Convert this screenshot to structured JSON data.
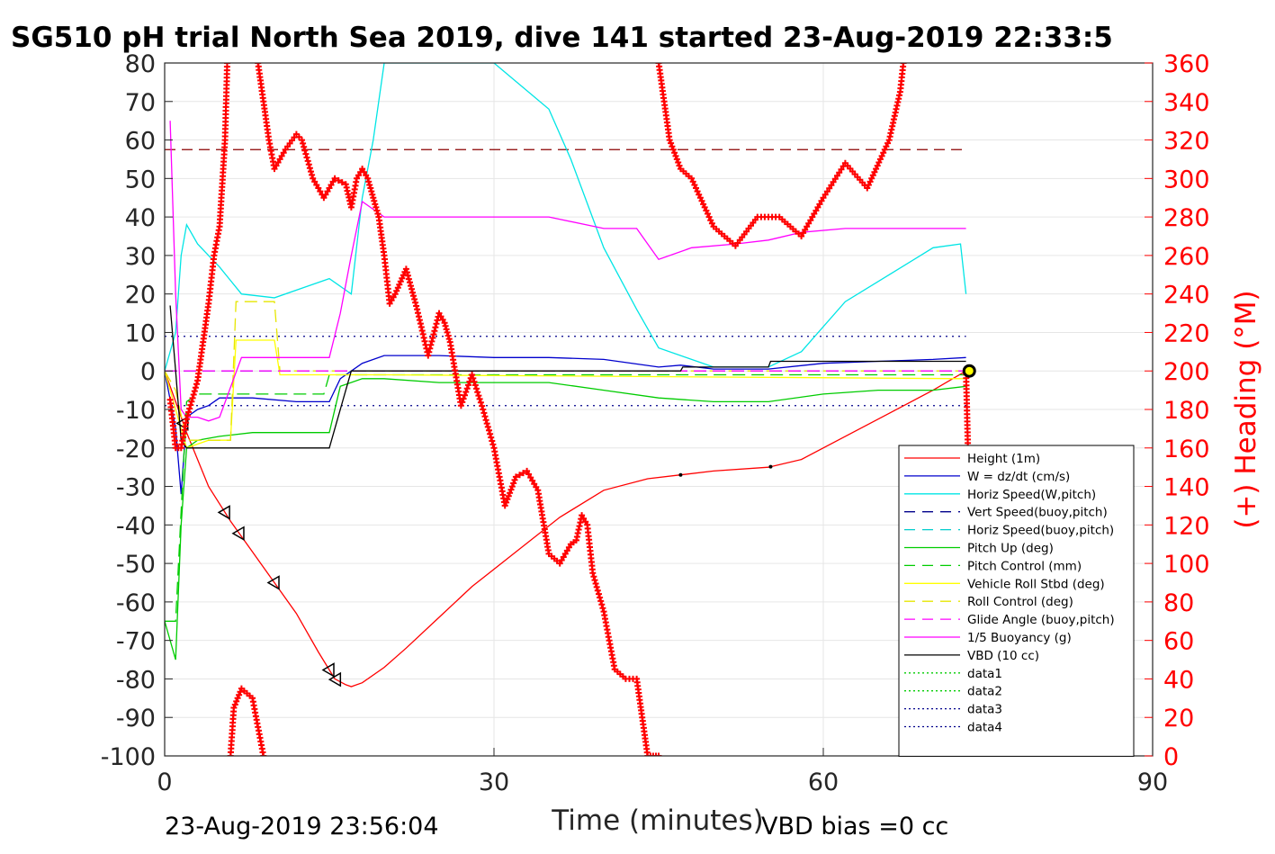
{
  "title": "SG510 pH trial North Sea 2019, dive 141 started 23-Aug-2019 22:33:5",
  "footer": {
    "timestamp": "23-Aug-2019 23:56:04",
    "vbd_bias": "VBD bias =0 cc"
  },
  "chart_data": {
    "type": "line",
    "title": "SG510 pH trial North Sea 2019, dive 141 started 23-Aug-2019 22:33:5",
    "xlabel": "Time (minutes)",
    "ylabel": "",
    "ylabel_right": "(+) Heading (°M)",
    "xlim": [
      0,
      90
    ],
    "ylim": [
      -100,
      80
    ],
    "ylim_right": [
      0,
      360
    ],
    "x_ticks": [
      "0",
      "30",
      "60",
      "90"
    ],
    "y_ticks": [
      "80",
      "70",
      "60",
      "50",
      "40",
      "30",
      "20",
      "10",
      "0",
      "-10",
      "-20",
      "-30",
      "-40",
      "-50",
      "-60",
      "-70",
      "-80",
      "-90",
      "-100"
    ],
    "y_ticks_right": [
      "360",
      "340",
      "320",
      "300",
      "280",
      "260",
      "240",
      "220",
      "200",
      "180",
      "160",
      "140",
      "120",
      "100",
      "80",
      "60",
      "40",
      "20",
      "0"
    ],
    "grid": true,
    "legend_position": "bottom-right",
    "reference_lines": [
      {
        "y_right": 315,
        "color": "#8b0000",
        "style": "dashed"
      },
      {
        "y": 9,
        "color": "#00008b",
        "style": "dotted"
      },
      {
        "y": -9,
        "color": "#00008b",
        "style": "dotted"
      }
    ],
    "series": [
      {
        "name": "Height (1m)",
        "color": "#ff0000",
        "style": "solid",
        "x": [
          0,
          1,
          2,
          4,
          6,
          8,
          10,
          12,
          14,
          15.5,
          16.5,
          17,
          18,
          20,
          22,
          25,
          28,
          32,
          36,
          40,
          44,
          47,
          50,
          55,
          58,
          62,
          66,
          70,
          73
        ],
        "y": [
          0,
          -8,
          -16,
          -30,
          -39,
          -47,
          -55,
          -63,
          -73,
          -80,
          -81.5,
          -82,
          -81,
          -77,
          -72,
          -64,
          -56,
          -47,
          -38,
          -31,
          -28,
          -27,
          -26,
          -25,
          -23,
          -17,
          -11,
          -5,
          0
        ]
      },
      {
        "name": "W = dz/dt (cm/s)",
        "color": "#0000cd",
        "style": "solid",
        "x": [
          0,
          1,
          1.5,
          2,
          3,
          4,
          5,
          8,
          12,
          15,
          16,
          18,
          20,
          25,
          30,
          35,
          40,
          45,
          47,
          50,
          55,
          60,
          65,
          70,
          73
        ],
        "y": [
          0,
          -15,
          -32,
          -12,
          -10,
          -9,
          -7,
          -7,
          -8,
          -8,
          -2,
          2,
          4,
          4,
          3.5,
          3.5,
          3,
          1,
          1.5,
          0.5,
          0.5,
          2,
          2.5,
          3,
          3.5
        ]
      },
      {
        "name": "Horiz Speed(W,pitch)",
        "color": "#00e5e5",
        "style": "solid",
        "x": [
          0,
          1,
          1.5,
          2,
          3,
          4,
          5,
          7,
          10,
          13,
          15,
          17,
          18,
          19,
          20,
          25,
          30,
          35,
          37,
          40,
          43,
          45,
          48,
          50,
          55,
          58,
          62,
          66,
          70,
          72.5,
          73
        ],
        "y": [
          0,
          10,
          30,
          38,
          33,
          30,
          27,
          20,
          19,
          22,
          24,
          20,
          45,
          60,
          80,
          80,
          80,
          68,
          55,
          32,
          16,
          6,
          3,
          1,
          1,
          5,
          18,
          25,
          32,
          33,
          20
        ]
      },
      {
        "name": "Vert Speed(buoy,pitch)",
        "color": "#00008b",
        "style": "dashed",
        "x": [
          0,
          73
        ],
        "y": [
          0,
          0
        ]
      },
      {
        "name": "Horiz Speed(buoy,pitch)",
        "color": "#00cccc",
        "style": "dashed",
        "x": [
          0,
          73
        ],
        "y": [
          0,
          0
        ]
      },
      {
        "name": "Pitch Up (deg)",
        "color": "#00cc00",
        "style": "solid",
        "x": [
          0,
          1,
          1.5,
          2,
          3,
          5,
          8,
          12,
          15,
          16,
          18,
          20,
          25,
          30,
          35,
          40,
          45,
          50,
          55,
          60,
          65,
          70,
          73
        ],
        "y": [
          -65,
          -75,
          -40,
          -20,
          -18,
          -17,
          -16,
          -16,
          -16,
          -4,
          -2,
          -2,
          -3,
          -3,
          -3,
          -5,
          -7,
          -8,
          -8,
          -6,
          -5,
          -5,
          -4
        ]
      },
      {
        "name": "Pitch Control (mm)",
        "color": "#00cc00",
        "style": "dashed",
        "x": [
          0,
          1,
          2,
          3,
          14.5,
          15,
          73
        ],
        "y": [
          -65,
          -65,
          -8,
          -6,
          -6,
          -1,
          -1
        ]
      },
      {
        "name": "Vehicle Roll Stbd (deg)",
        "color": "#ffff00",
        "style": "solid",
        "x": [
          0,
          1,
          2,
          4,
          6,
          6.5,
          10,
          10.5,
          15,
          16,
          20,
          73
        ],
        "y": [
          0,
          -10,
          -20,
          -18,
          -18,
          8,
          8,
          -1,
          -1,
          -1,
          -1,
          -2
        ]
      },
      {
        "name": "Roll Control (deg)",
        "color": "#e6e600",
        "style": "dashed",
        "x": [
          0,
          1,
          2,
          6,
          6.5,
          10,
          10.5,
          73
        ],
        "y": [
          0,
          -5,
          -18,
          -18,
          18,
          18,
          0,
          0
        ]
      },
      {
        "name": "Glide Angle (buoy,pitch)",
        "color": "#ff00ff",
        "style": "dashed",
        "x": [
          0,
          73
        ],
        "y": [
          0,
          0
        ]
      },
      {
        "name": "1/5 Buoyancy (g)",
        "color": "#ff00ff",
        "style": "solid",
        "x": [
          0.5,
          1,
          1.5,
          2,
          3,
          4,
          5,
          7,
          10,
          13,
          15,
          16,
          17,
          18,
          20,
          25,
          30,
          35,
          40,
          43,
          45,
          48,
          52,
          55,
          58,
          62,
          66,
          70,
          73
        ],
        "y": [
          65,
          20,
          -10,
          -12,
          -12,
          -13,
          -12,
          3.5,
          3.5,
          3.5,
          3.5,
          15,
          30,
          44,
          40,
          40,
          40,
          40,
          37,
          37,
          29,
          32,
          33,
          34,
          36,
          37,
          37,
          37,
          37
        ]
      },
      {
        "name": "VBD (10 cc)",
        "color": "#000000",
        "style": "solid",
        "x": [
          0.5,
          1,
          1.5,
          2,
          15,
          17,
          18,
          47,
          47.2,
          55,
          55.2,
          73
        ],
        "y": [
          17,
          0,
          -18,
          -20,
          -20,
          0,
          0,
          0,
          1,
          1,
          2.5,
          2.5
        ]
      },
      {
        "name": "data1",
        "color": "#00cc00",
        "style": "dotted",
        "x": [],
        "y": []
      },
      {
        "name": "data2",
        "color": "#00cc00",
        "style": "dotted",
        "x": [],
        "y": []
      },
      {
        "name": "data3",
        "color": "#00008b",
        "style": "dotted",
        "x": [],
        "y": []
      },
      {
        "name": "data4",
        "color": "#00008b",
        "style": "dotted",
        "x": [],
        "y": []
      }
    ],
    "heading": {
      "name": "(+) Heading (°M)",
      "color": "#ff0000",
      "marker": "+",
      "axis": "right",
      "segments": [
        {
          "x": [
            0.5,
            1,
            1.5,
            2,
            3,
            4,
            4.5,
            5,
            5.5,
            5.7
          ],
          "y": [
            185,
            160,
            160,
            175,
            195,
            235,
            260,
            275,
            320,
            360
          ]
        },
        {
          "x": [
            8.5,
            9.5,
            10,
            11,
            12,
            12.5,
            13.5,
            14.5,
            15.5,
            16.5,
            17,
            17.5,
            18,
            18.5,
            19,
            19.5,
            20,
            20.5,
            21,
            22,
            23,
            24,
            25,
            25.5,
            26,
            27,
            28,
            29,
            30,
            31,
            32,
            33,
            34,
            35,
            36,
            37,
            37.5,
            38,
            38.5,
            39,
            40,
            41,
            42,
            43,
            43.5,
            44,
            44.5,
            45
          ],
          "y": [
            360,
            320,
            305,
            315,
            323,
            320,
            300,
            290,
            300,
            297,
            285,
            300,
            305,
            300,
            290,
            280,
            260,
            235,
            240,
            253,
            232,
            208,
            230,
            225,
            215,
            182,
            198,
            180,
            160,
            130,
            145,
            148,
            138,
            105,
            100,
            110,
            112,
            125,
            120,
            95,
            75,
            45,
            40,
            40,
            20,
            0,
            0,
            0
          ]
        },
        {
          "x": [
            45,
            46,
            47,
            48,
            50,
            52,
            54,
            56,
            58,
            60,
            62,
            64,
            66,
            67,
            67.3
          ],
          "y": [
            360,
            320,
            305,
            300,
            275,
            265,
            280,
            280,
            270,
            290,
            308,
            295,
            320,
            345,
            360
          ]
        },
        {
          "x": [
            67.3,
            67.6
          ],
          "y": [
            0,
            10
          ]
        },
        {
          "x": [
            6,
            6.3,
            7,
            8,
            8.5,
            9
          ],
          "y": [
            0,
            25,
            35,
            30,
            15,
            0
          ]
        },
        {
          "x": [
            73,
            73.2
          ],
          "y": [
            200,
            155
          ]
        }
      ]
    },
    "annotations": [
      {
        "type": "triangle-marker",
        "series": "Height (1m)"
      },
      {
        "type": "dot-marker",
        "series": "Height (1m)"
      }
    ]
  }
}
